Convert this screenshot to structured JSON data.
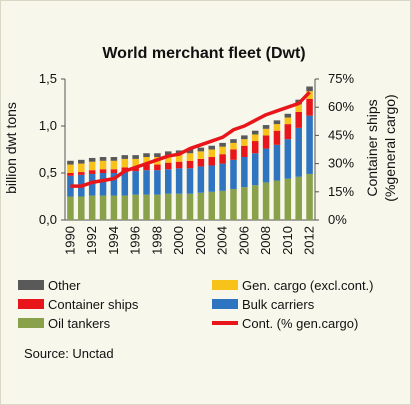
{
  "chart_data": {
    "type": "bar",
    "stacked": true,
    "title": "World merchant fleet (Dwt)",
    "ylabel": "billion dwt tons",
    "y2label_line1": "Container ships",
    "y2label_line2": "(%general cargo)",
    "ylim": [
      0,
      1.5
    ],
    "yticks": [
      "0,0",
      "0,5",
      "1,0",
      "1,5"
    ],
    "y2lim": [
      0,
      75
    ],
    "y2ticks": [
      "0%",
      "15%",
      "30%",
      "45%",
      "60%",
      "75%"
    ],
    "x_tick_labels": [
      "1990",
      "1992",
      "1994",
      "1996",
      "1998",
      "2000",
      "2002",
      "2004",
      "2006",
      "2008",
      "2010",
      "2012"
    ],
    "categories": [
      "1990",
      "1991",
      "1992",
      "1993",
      "1994",
      "1995",
      "1996",
      "1997",
      "1998",
      "1999",
      "2000",
      "2001",
      "2002",
      "2003",
      "2004",
      "2005",
      "2006",
      "2007",
      "2008",
      "2009",
      "2010",
      "2011",
      "2012"
    ],
    "series": [
      {
        "name": "Oil tankers",
        "color": "#8aa14c",
        "values": [
          0.25,
          0.25,
          0.26,
          0.26,
          0.26,
          0.26,
          0.27,
          0.27,
          0.27,
          0.28,
          0.28,
          0.28,
          0.29,
          0.3,
          0.31,
          0.33,
          0.35,
          0.37,
          0.4,
          0.42,
          0.44,
          0.46,
          0.49
        ]
      },
      {
        "name": "Bulk carriers",
        "color": "#2f74c0",
        "values": [
          0.22,
          0.23,
          0.23,
          0.24,
          0.24,
          0.25,
          0.25,
          0.26,
          0.26,
          0.26,
          0.27,
          0.27,
          0.28,
          0.28,
          0.29,
          0.31,
          0.32,
          0.34,
          0.36,
          0.38,
          0.42,
          0.52,
          0.62
        ]
      },
      {
        "name": "Container ships",
        "color": "#e8161a",
        "values": [
          0.03,
          0.03,
          0.04,
          0.04,
          0.04,
          0.05,
          0.05,
          0.06,
          0.06,
          0.07,
          0.07,
          0.08,
          0.08,
          0.09,
          0.1,
          0.11,
          0.12,
          0.13,
          0.14,
          0.15,
          0.16,
          0.17,
          0.18
        ]
      },
      {
        "name": "Gen. cargo (excl.cont.)",
        "color": "#f7c21a",
        "values": [
          0.09,
          0.09,
          0.09,
          0.09,
          0.09,
          0.09,
          0.08,
          0.08,
          0.08,
          0.08,
          0.08,
          0.08,
          0.08,
          0.08,
          0.08,
          0.07,
          0.07,
          0.07,
          0.07,
          0.07,
          0.07,
          0.08,
          0.08
        ]
      },
      {
        "name": "Other",
        "color": "#595959",
        "values": [
          0.04,
          0.04,
          0.04,
          0.04,
          0.04,
          0.04,
          0.04,
          0.04,
          0.04,
          0.04,
          0.04,
          0.04,
          0.04,
          0.04,
          0.04,
          0.04,
          0.04,
          0.04,
          0.04,
          0.04,
          0.04,
          0.05,
          0.05
        ]
      }
    ],
    "line": {
      "name": "Cont. (% gen.cargo)",
      "color": "#e8161a",
      "axis": "right",
      "values": [
        18,
        18,
        20,
        21,
        22,
        26,
        28,
        30,
        32,
        34,
        35,
        38,
        40,
        42,
        44,
        48,
        50,
        53,
        56,
        58,
        60,
        62,
        68
      ]
    },
    "legend": {
      "placement": "bottom",
      "items": [
        {
          "label": "Other",
          "color": "#595959",
          "kind": "bar"
        },
        {
          "label": "Gen. cargo (excl.cont.)",
          "color": "#f7c21a",
          "kind": "bar"
        },
        {
          "label": "Container ships",
          "color": "#e8161a",
          "kind": "bar"
        },
        {
          "label": "Bulk carriers",
          "color": "#2f74c0",
          "kind": "bar"
        },
        {
          "label": "Oil tankers",
          "color": "#8aa14c",
          "kind": "bar"
        },
        {
          "label": "Cont. (% gen.cargo)",
          "color": "#e8161a",
          "kind": "line"
        }
      ]
    },
    "grid": false
  },
  "source": "Source: Unctad"
}
